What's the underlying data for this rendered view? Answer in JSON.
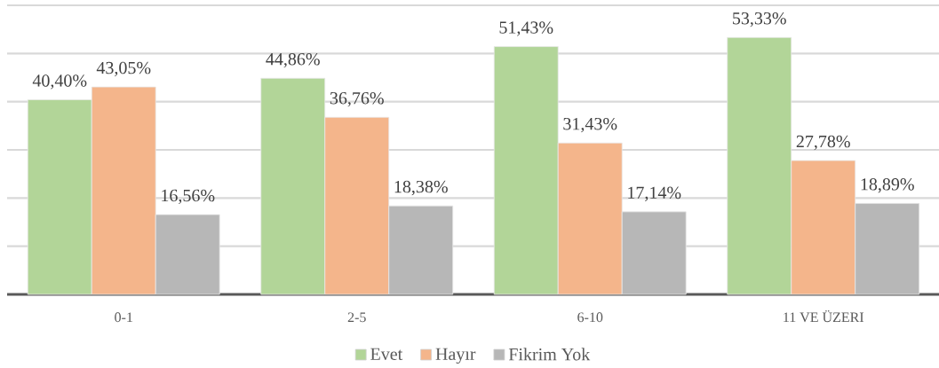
{
  "chart_data": {
    "type": "bar",
    "categories": [
      "0-1",
      "2-5",
      "6-10",
      "11 VE ÜZERI"
    ],
    "series": [
      {
        "name": "Evet",
        "color": "#b2d598",
        "values": [
          40.4,
          44.86,
          51.43,
          53.33
        ],
        "value_labels": [
          "40,40%",
          "44,86%",
          "51,43%",
          "53,33%"
        ]
      },
      {
        "name": "Hayır",
        "color": "#f4b58b",
        "values": [
          43.05,
          36.76,
          31.43,
          27.78
        ],
        "value_labels": [
          "43,05%",
          "36,76%",
          "31,43%",
          "27,78%"
        ]
      },
      {
        "name": "Fikrim Yok",
        "color": "#b7b7b7",
        "values": [
          16.56,
          18.38,
          17.14,
          18.89
        ],
        "value_labels": [
          "16,56%",
          "18,38%",
          "17,14%",
          "18,89%"
        ]
      }
    ],
    "ylim": [
      0,
      60
    ],
    "yticks": [
      {
        "value": 0,
        "label": null
      },
      {
        "value": 10,
        "label": null
      },
      {
        "value": 20,
        "label": null
      },
      {
        "value": 30,
        "label": null
      },
      {
        "value": 40,
        "label": null
      },
      {
        "value": 50,
        "label": null
      },
      {
        "value": 60,
        "label": null
      }
    ],
    "grid": "y",
    "legend": "bottom",
    "tick_labels": "x"
  }
}
